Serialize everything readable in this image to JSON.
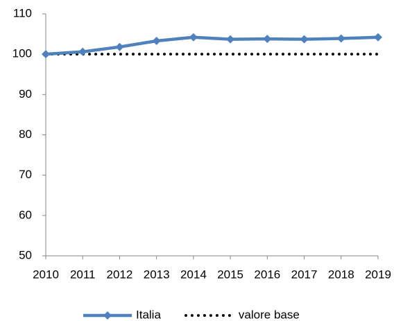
{
  "chart_data": {
    "type": "line",
    "categories": [
      "2010",
      "2011",
      "2012",
      "2013",
      "2014",
      "2015",
      "2016",
      "2017",
      "2018",
      "2019"
    ],
    "series": [
      {
        "name": "Italia",
        "color": "#4f81bd",
        "line_style": "solid",
        "marker": "diamond",
        "values": [
          100,
          100.6,
          101.8,
          103.3,
          104.2,
          103.7,
          103.8,
          103.7,
          103.9,
          104.2
        ]
      },
      {
        "name": "valore base",
        "color": "#000000",
        "line_style": "dotted",
        "marker": "none",
        "values": [
          100,
          100,
          100,
          100,
          100,
          100,
          100,
          100,
          100,
          100
        ]
      }
    ],
    "ylim": [
      50,
      110
    ],
    "yticks": [
      50,
      60,
      70,
      80,
      90,
      100,
      110
    ],
    "grid": false,
    "legend": "bottom"
  }
}
